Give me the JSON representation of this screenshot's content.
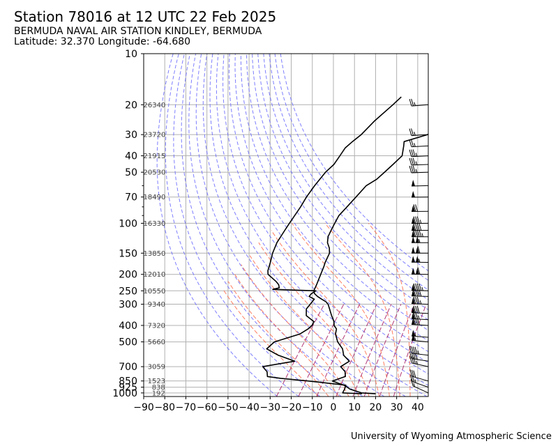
{
  "header": {
    "title": "Station 78016 at 12 UTC 22 Feb 2025",
    "subtitle": "BERMUDA NAVAL AIR STATION KINDLEY, BERMUDA",
    "latlon": "Latitude: 32.370 Longitude: -64.680"
  },
  "footer": {
    "credit": "University of Wyoming Atmospheric Science"
  },
  "chart_data": {
    "type": "line",
    "title": "Station 78016 at 12 UTC 22 Feb 2025",
    "xlim": [
      -90,
      45
    ],
    "ylim": [
      1050,
      10
    ],
    "y_scale": "log",
    "grid": true,
    "x_ticks": [
      -90,
      -80,
      -70,
      -60,
      -50,
      -40,
      -30,
      -20,
      -10,
      0,
      10,
      20,
      30,
      40
    ],
    "x_tick_labels": [
      "−90",
      "−80",
      "−70",
      "−60",
      "−50",
      "−40",
      "−30",
      "−20",
      "−10",
      "0",
      "10",
      "20",
      "30",
      "40"
    ],
    "y_ticks": [
      10,
      20,
      30,
      40,
      50,
      70,
      100,
      150,
      200,
      250,
      300,
      400,
      500,
      700,
      850,
      925,
      1000
    ],
    "y_tick_labels": [
      "10",
      "20",
      "30",
      "40",
      "50",
      "70",
      "100",
      "150",
      "200",
      "250",
      "300",
      "400",
      "500",
      "700",
      "850",
      "925",
      "1000"
    ],
    "height_labels": [
      {
        "p": 20,
        "text": "26340"
      },
      {
        "p": 30,
        "text": "23720"
      },
      {
        "p": 40,
        "text": "21915"
      },
      {
        "p": 50,
        "text": "20530"
      },
      {
        "p": 70,
        "text": "18490"
      },
      {
        "p": 100,
        "text": "16330"
      },
      {
        "p": 150,
        "text": "13850"
      },
      {
        "p": 200,
        "text": "12010"
      },
      {
        "p": 250,
        "text": "10550"
      },
      {
        "p": 300,
        "text": "9340"
      },
      {
        "p": 400,
        "text": "7320"
      },
      {
        "p": 500,
        "text": "5660"
      },
      {
        "p": 700,
        "text": "3059"
      },
      {
        "p": 850,
        "text": "1523"
      },
      {
        "p": 925,
        "text": "838"
      },
      {
        "p": 1000,
        "text": "192"
      }
    ],
    "series": [
      {
        "role": "temperature",
        "color": "#000000",
        "points": [
          [
            1012,
            19
          ],
          [
            1000,
            12
          ],
          [
            950,
            5
          ],
          [
            925,
            3
          ],
          [
            900,
            0.6
          ],
          [
            850,
            -6.5
          ],
          [
            800,
            -2
          ],
          [
            750,
            -4
          ],
          [
            700,
            -8
          ],
          [
            650,
            -6
          ],
          [
            600,
            -11
          ],
          [
            550,
            -14
          ],
          [
            500,
            -19
          ],
          [
            450,
            -23
          ],
          [
            420,
            -24.5
          ],
          [
            400,
            -27
          ],
          [
            380,
            -28.5
          ],
          [
            350,
            -32
          ],
          [
            320,
            -35.5
          ],
          [
            300,
            -38
          ],
          [
            290,
            -40
          ],
          [
            280,
            -43
          ],
          [
            270,
            -46
          ],
          [
            260,
            -48.5
          ],
          [
            250,
            -50
          ],
          [
            230,
            -51
          ],
          [
            200,
            -53
          ],
          [
            180,
            -54.5
          ],
          [
            170,
            -55.5
          ],
          [
            150,
            -57
          ],
          [
            140,
            -59
          ],
          [
            130,
            -62
          ],
          [
            120,
            -64
          ],
          [
            110,
            -65
          ],
          [
            100,
            -66
          ],
          [
            90,
            -67
          ],
          [
            80,
            -66.5
          ],
          [
            70,
            -66
          ],
          [
            60,
            -65.5
          ],
          [
            55,
            -63
          ],
          [
            50,
            -62
          ],
          [
            45,
            -61
          ],
          [
            40,
            -60
          ],
          [
            35,
            -63
          ],
          [
            33,
            -64.5
          ],
          [
            30,
            -56
          ],
          [
            25,
            -54
          ],
          [
            20,
            -52
          ],
          [
            18,
            -49
          ],
          [
            17.5,
            -47
          ]
        ]
      },
      {
        "role": "dewpoint",
        "color": "#000000",
        "points": [
          [
            1012,
            12.5
          ],
          [
            1000,
            3
          ],
          [
            950,
            2.5
          ],
          [
            925,
            2
          ],
          [
            900,
            1.5
          ],
          [
            850,
            -18
          ],
          [
            820,
            -32
          ],
          [
            800,
            -39
          ],
          [
            750,
            -41
          ],
          [
            700,
            -45
          ],
          [
            650,
            -32
          ],
          [
            600,
            -42
          ],
          [
            550,
            -50
          ],
          [
            500,
            -49
          ],
          [
            450,
            -40
          ],
          [
            420,
            -38
          ],
          [
            400,
            -37.5
          ],
          [
            380,
            -38
          ],
          [
            350,
            -44
          ],
          [
            320,
            -46.5
          ],
          [
            300,
            -46.5
          ],
          [
            280,
            -46.5
          ],
          [
            270,
            -50
          ],
          [
            260,
            -50
          ],
          [
            255,
            -49.5
          ],
          [
            250,
            -49
          ],
          [
            245,
            -70
          ],
          [
            240,
            -67.5
          ],
          [
            230,
            -69
          ],
          [
            220,
            -71.5
          ],
          [
            200,
            -78
          ],
          [
            190,
            -79.5
          ],
          [
            170,
            -81.5
          ],
          [
            150,
            -84
          ],
          [
            130,
            -86
          ],
          [
            110,
            -87
          ],
          [
            100,
            -87.5
          ],
          [
            80,
            -88.5
          ],
          [
            70,
            -89.5
          ],
          [
            60,
            -90
          ],
          [
            50,
            -90
          ],
          [
            45,
            -89
          ],
          [
            40,
            -89.5
          ],
          [
            36,
            -90
          ],
          [
            33,
            -89
          ],
          [
            30,
            -87.5
          ],
          [
            25,
            -86.5
          ],
          [
            20,
            -84
          ],
          [
            18,
            -83
          ]
        ]
      }
    ],
    "dry_adiabats_theta_c": [
      -30,
      -20,
      -10,
      0,
      10,
      20,
      30,
      40,
      50,
      60,
      70,
      80,
      90,
      100,
      110,
      120,
      130,
      140,
      150,
      160
    ],
    "moist_adiabats_theta_c": [
      -10,
      -5,
      0,
      5,
      10,
      15,
      20,
      25,
      30,
      35
    ],
    "mixing_ratio_lines_gkg": [
      0.4,
      1,
      2,
      4,
      7,
      10,
      16,
      24
    ],
    "wind_barbs": [
      {
        "p": 1000,
        "spd": 15,
        "dir": 200
      },
      {
        "p": 925,
        "spd": 25,
        "dir": 215
      },
      {
        "p": 850,
        "spd": 30,
        "dir": 225
      },
      {
        "p": 700,
        "spd": 35,
        "dir": 235
      },
      {
        "p": 650,
        "spd": 40,
        "dir": 245
      },
      {
        "p": 600,
        "spd": 45,
        "dir": 250
      },
      {
        "p": 500,
        "spd": 55,
        "dir": 255
      },
      {
        "p": 470,
        "spd": 55,
        "dir": 258
      },
      {
        "p": 400,
        "spd": 80,
        "dir": 260
      },
      {
        "p": 370,
        "spd": 75,
        "dir": 260
      },
      {
        "p": 340,
        "spd": 80,
        "dir": 262
      },
      {
        "p": 300,
        "spd": 85,
        "dir": 264
      },
      {
        "p": 270,
        "spd": 90,
        "dir": 265
      },
      {
        "p": 250,
        "spd": 95,
        "dir": 265
      },
      {
        "p": 200,
        "spd": 110,
        "dir": 268
      },
      {
        "p": 170,
        "spd": 105,
        "dir": 268
      },
      {
        "p": 150,
        "spd": 110,
        "dir": 270
      },
      {
        "p": 130,
        "spd": 105,
        "dir": 270
      },
      {
        "p": 120,
        "spd": 95,
        "dir": 270
      },
      {
        "p": 110,
        "spd": 90,
        "dir": 272
      },
      {
        "p": 100,
        "spd": 85,
        "dir": 272
      },
      {
        "p": 85,
        "spd": 70,
        "dir": 272
      },
      {
        "p": 70,
        "spd": 50,
        "dir": 272
      },
      {
        "p": 60,
        "spd": 50,
        "dir": 274
      },
      {
        "p": 50,
        "spd": 35,
        "dir": 276
      },
      {
        "p": 45,
        "spd": 35,
        "dir": 276
      },
      {
        "p": 40,
        "spd": 35,
        "dir": 278
      },
      {
        "p": 35,
        "spd": 25,
        "dir": 278
      },
      {
        "p": 30,
        "spd": 25,
        "dir": 280
      },
      {
        "p": 20,
        "spd": 25,
        "dir": 282
      }
    ],
    "colors": {
      "grid": "#b0b0b0",
      "dry_adiabat": "#6666ff",
      "moist_adiabat": "#ff6644",
      "mixing_ratio": "#aa2266",
      "profile": "#000000",
      "height_label": "#444444"
    }
  }
}
